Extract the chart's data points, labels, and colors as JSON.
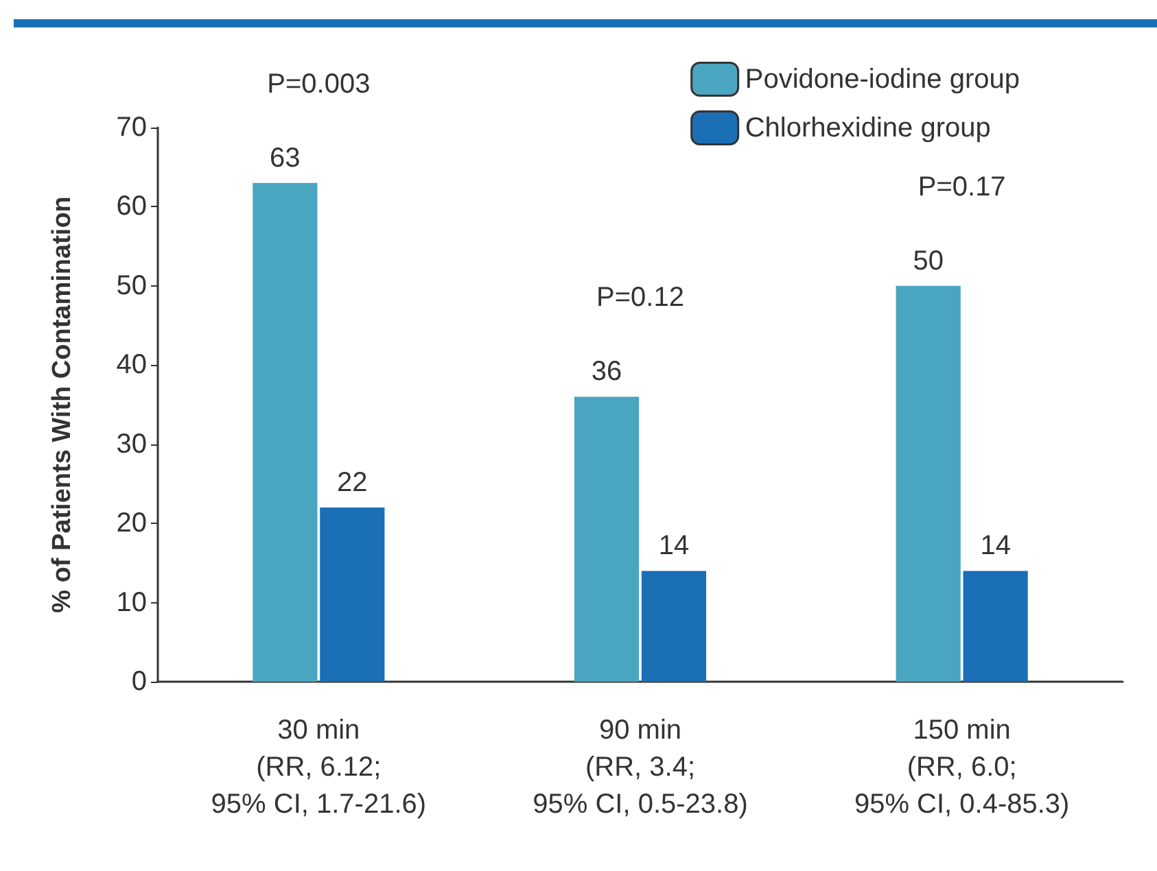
{
  "chart_data": {
    "type": "bar",
    "ylabel": "% of Patients With Contamination",
    "categories": [
      "30 min\n(RR, 6.12;\n95% CI, 1.7-21.6)",
      "90 min\n(RR, 3.4;\n95% CI, 0.5-23.8)",
      "150 min\n(RR, 6.0;\n95% CI, 0.4-85.3)"
    ],
    "series": [
      {
        "name": "Povidone-iodine group",
        "color": "#4aa6c0",
        "values": [
          63,
          36,
          50
        ]
      },
      {
        "name": "Chlorhexidine group",
        "color": "#1a6fb5",
        "values": [
          22,
          14,
          14
        ]
      }
    ],
    "ylim": [
      0,
      70
    ],
    "yticks": [
      0,
      10,
      20,
      30,
      40,
      50,
      60,
      70
    ],
    "data_labels": true,
    "grid": false,
    "legend": "top right",
    "annotations": [
      "P=0.003",
      "P=0.12",
      "P=0.17"
    ]
  }
}
